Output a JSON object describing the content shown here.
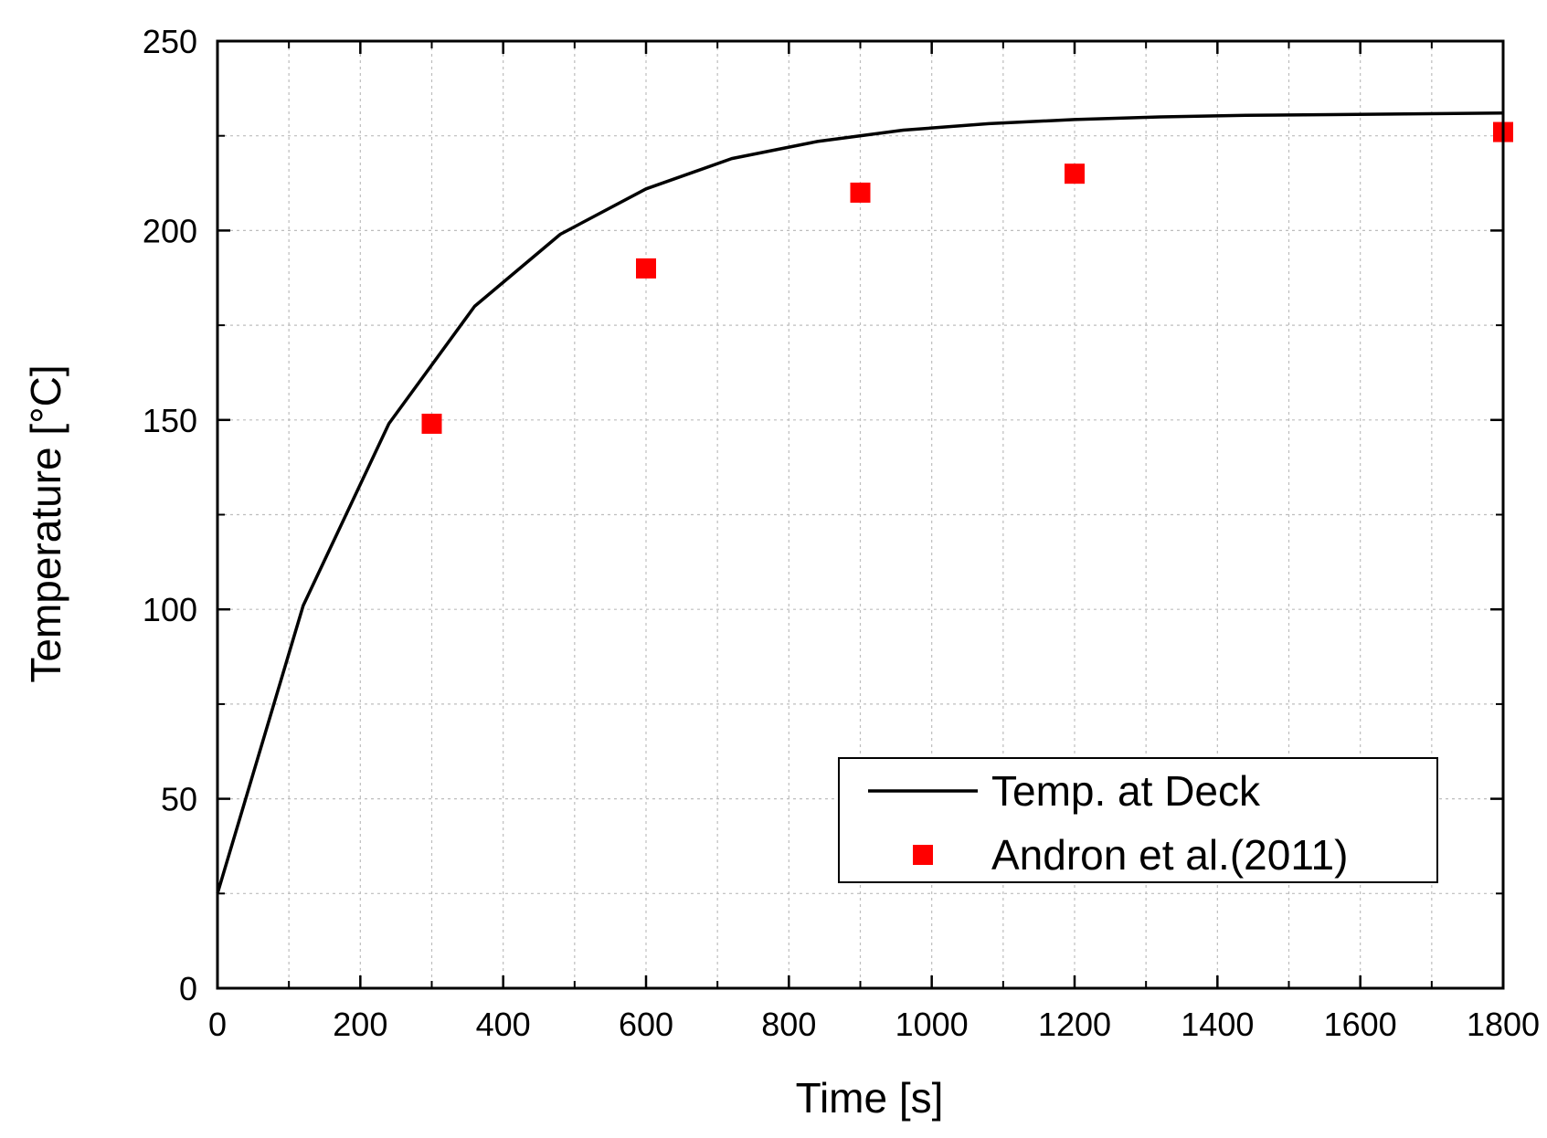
{
  "chart_data": {
    "type": "line",
    "xlabel": "Time [s]",
    "ylabel": "Temperature [°C]",
    "xlim": [
      0,
      1800
    ],
    "ylim": [
      0,
      250
    ],
    "x_ticks": [
      0,
      200,
      400,
      600,
      800,
      1000,
      1200,
      1400,
      1600,
      1800
    ],
    "y_ticks": [
      0,
      50,
      100,
      150,
      200,
      250
    ],
    "grid": true,
    "legend_position": "bottom-right",
    "series": [
      {
        "name": "Temp. at Deck",
        "type": "line",
        "color": "#000000",
        "x": [
          0,
          120,
          240,
          360,
          480,
          600,
          720,
          840,
          960,
          1080,
          1200,
          1320,
          1440,
          1560,
          1680,
          1800
        ],
        "y": [
          25,
          101,
          149,
          180,
          199,
          211,
          219,
          223.5,
          226.5,
          228.2,
          229.3,
          230,
          230.4,
          230.6,
          230.8,
          231
        ]
      },
      {
        "name": "Andron et al.(2011)",
        "type": "scatter",
        "marker": "square",
        "color": "#ff0000",
        "x": [
          300,
          600,
          900,
          1200,
          1800
        ],
        "y": [
          149,
          190,
          210,
          215,
          226
        ]
      }
    ]
  }
}
